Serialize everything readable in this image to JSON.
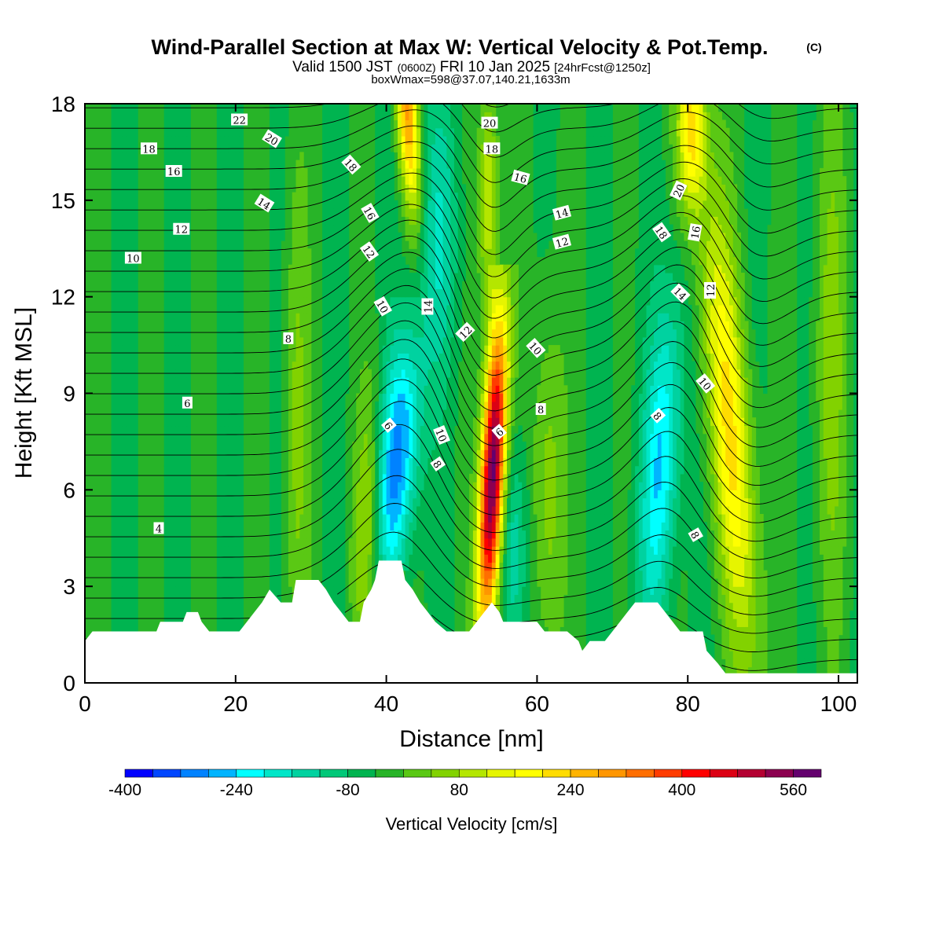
{
  "chart_data": {
    "type": "heatmap",
    "title": "Wind-Parallel Section at Max W: Vertical Velocity & Pot.Temp.",
    "title_mark": "(C)",
    "subtitle": {
      "valid": "Valid 1500 JST",
      "utc": "(0600Z)",
      "date": "FRI 10 Jan 2025",
      "forecast": "[24hrFcst@1250z]"
    },
    "box_note": "boxWmax=598@37.07,140.21,1633m",
    "xlabel": "Distance [nm]",
    "ylabel": "Height [Kft MSL]",
    "xlim": [
      0,
      102.5
    ],
    "ylim": [
      0,
      18
    ],
    "x_ticks": [
      "0",
      "20",
      "40",
      "60",
      "80",
      "100"
    ],
    "y_ticks": [
      "0",
      "3",
      "6",
      "9",
      "12",
      "15",
      "18"
    ],
    "colorbar": {
      "label": "Vertical Velocity [cm/s]",
      "min": -400,
      "max": 600,
      "step": 40,
      "tick_labels": [
        "-400",
        "-240",
        "-80",
        "80",
        "240",
        "400",
        "560"
      ],
      "colors": [
        "#0000ff",
        "#0046ff",
        "#0082ff",
        "#00b4ff",
        "#00ffff",
        "#00e6c8",
        "#00d2a0",
        "#00c878",
        "#00b450",
        "#28b428",
        "#5ac814",
        "#82d200",
        "#b4e600",
        "#e6f500",
        "#ffff00",
        "#ffdc00",
        "#ffb400",
        "#ff9600",
        "#ff6e00",
        "#ff3c00",
        "#ff0000",
        "#dc0014",
        "#b40032",
        "#8c0050",
        "#64006e"
      ]
    },
    "updraft_bands": [
      {
        "center_nm": 53,
        "peak_cm_s": 598,
        "height_kft": [
          1.5,
          12.5
        ]
      },
      {
        "center_nm": 43,
        "peak_cm_s": 260,
        "height_kft": [
          13.5,
          18
        ]
      },
      {
        "center_nm": 85,
        "peak_cm_s": 200,
        "height_kft": [
          2,
          18
        ]
      },
      {
        "center_nm": 37,
        "peak_cm_s": 100,
        "height_kft": [
          2,
          9
        ]
      },
      {
        "center_nm": 54,
        "peak_cm_s": 150,
        "height_kft": [
          12,
          18
        ]
      }
    ],
    "downdraft_bands": [
      {
        "center_nm": 42,
        "min_cm_s": -250,
        "height_kft": [
          3,
          11
        ]
      },
      {
        "center_nm": 76,
        "min_cm_s": -190,
        "height_kft": [
          2,
          13
        ]
      }
    ],
    "terrain_kft": [
      [
        0,
        1.3
      ],
      [
        1,
        1.6
      ],
      [
        9.5,
        1.6
      ],
      [
        10,
        1.9
      ],
      [
        13,
        1.9
      ],
      [
        13.5,
        2.2
      ],
      [
        15,
        2.2
      ],
      [
        15.5,
        1.9
      ],
      [
        16.5,
        1.6
      ],
      [
        20.5,
        1.6
      ],
      [
        21.5,
        1.9
      ],
      [
        22.5,
        2.2
      ],
      [
        23.5,
        2.5
      ],
      [
        24.5,
        2.9
      ],
      [
        26,
        2.5
      ],
      [
        27.5,
        2.5
      ],
      [
        28,
        3.2
      ],
      [
        31,
        3.2
      ],
      [
        32,
        2.9
      ],
      [
        33,
        2.5
      ],
      [
        34,
        2.2
      ],
      [
        35,
        1.9
      ],
      [
        36.5,
        1.9
      ],
      [
        37,
        2.5
      ],
      [
        38,
        2.9
      ],
      [
        38.5,
        3.2
      ],
      [
        39,
        3.8
      ],
      [
        42,
        3.8
      ],
      [
        42.5,
        3.2
      ],
      [
        43.5,
        2.9
      ],
      [
        44.5,
        2.5
      ],
      [
        45.5,
        2.2
      ],
      [
        46.5,
        1.9
      ],
      [
        48,
        1.6
      ],
      [
        51,
        1.6
      ],
      [
        52,
        1.9
      ],
      [
        53,
        2.2
      ],
      [
        54,
        2.5
      ],
      [
        55,
        2.2
      ],
      [
        55.5,
        1.9
      ],
      [
        60,
        1.9
      ],
      [
        61,
        1.6
      ],
      [
        64,
        1.6
      ],
      [
        65.5,
        1.3
      ],
      [
        66,
        1.0
      ],
      [
        67,
        1.3
      ],
      [
        69,
        1.3
      ],
      [
        70,
        1.6
      ],
      [
        71,
        1.9
      ],
      [
        72,
        2.2
      ],
      [
        73,
        2.5
      ],
      [
        76,
        2.5
      ],
      [
        77,
        2.2
      ],
      [
        78,
        1.9
      ],
      [
        79,
        1.6
      ],
      [
        82,
        1.6
      ],
      [
        82.5,
        1.0
      ],
      [
        84,
        0.6
      ],
      [
        85,
        0.3
      ],
      [
        102.5,
        0.3
      ]
    ],
    "theta_contour_labels": [
      {
        "text": "22",
        "x": 20.5,
        "y": 17.5,
        "rot": 0
      },
      {
        "text": "20",
        "x": 24.8,
        "y": 16.9,
        "rot": 32
      },
      {
        "text": "18",
        "x": 8.5,
        "y": 16.6,
        "rot": 0
      },
      {
        "text": "16",
        "x": 11.8,
        "y": 15.9,
        "rot": 0
      },
      {
        "text": "14",
        "x": 23.8,
        "y": 14.9,
        "rot": 32
      },
      {
        "text": "12",
        "x": 12.8,
        "y": 14.1,
        "rot": 0
      },
      {
        "text": "10",
        "x": 6.4,
        "y": 13.2,
        "rot": 0
      },
      {
        "text": "8",
        "x": 27.0,
        "y": 10.7,
        "rot": 0
      },
      {
        "text": "6",
        "x": 13.6,
        "y": 8.7,
        "rot": 0
      },
      {
        "text": "4",
        "x": 9.8,
        "y": 4.8,
        "rot": 0
      },
      {
        "text": "18",
        "x": 35.3,
        "y": 16.1,
        "rot": 48
      },
      {
        "text": "16",
        "x": 37.8,
        "y": 14.6,
        "rot": 60
      },
      {
        "text": "12",
        "x": 37.7,
        "y": 13.4,
        "rot": 55
      },
      {
        "text": "10",
        "x": 39.5,
        "y": 11.7,
        "rot": 60
      },
      {
        "text": "14",
        "x": 45.5,
        "y": 11.7,
        "rot": -90
      },
      {
        "text": "12",
        "x": 50.5,
        "y": 10.9,
        "rot": -45
      },
      {
        "text": "10",
        "x": 47.3,
        "y": 7.7,
        "rot": 68
      },
      {
        "text": "8",
        "x": 46.8,
        "y": 6.8,
        "rot": 55
      },
      {
        "text": "6",
        "x": 40.3,
        "y": 8.0,
        "rot": 50
      },
      {
        "text": "6",
        "x": 55.0,
        "y": 7.8,
        "rot": -40
      },
      {
        "text": "20",
        "x": 53.7,
        "y": 17.4,
        "rot": 0
      },
      {
        "text": "18",
        "x": 54.0,
        "y": 16.6,
        "rot": 0
      },
      {
        "text": "16",
        "x": 57.8,
        "y": 15.7,
        "rot": 15
      },
      {
        "text": "14",
        "x": 63.3,
        "y": 14.6,
        "rot": -15
      },
      {
        "text": "12",
        "x": 63.3,
        "y": 13.7,
        "rot": -15
      },
      {
        "text": "10",
        "x": 59.8,
        "y": 10.4,
        "rot": 48
      },
      {
        "text": "8",
        "x": 60.5,
        "y": 8.5,
        "rot": 0
      },
      {
        "text": "8",
        "x": 76.0,
        "y": 8.3,
        "rot": 48
      },
      {
        "text": "20",
        "x": 78.8,
        "y": 15.3,
        "rot": -65
      },
      {
        "text": "18",
        "x": 76.5,
        "y": 14.0,
        "rot": 55
      },
      {
        "text": "16",
        "x": 81.0,
        "y": 14.0,
        "rot": -80
      },
      {
        "text": "14",
        "x": 79.0,
        "y": 12.1,
        "rot": 45
      },
      {
        "text": "12",
        "x": 83.0,
        "y": 12.2,
        "rot": -90
      },
      {
        "text": "10",
        "x": 82.3,
        "y": 9.3,
        "rot": 50
      },
      {
        "text": "8",
        "x": 81.0,
        "y": 4.6,
        "rot": 60
      }
    ]
  }
}
